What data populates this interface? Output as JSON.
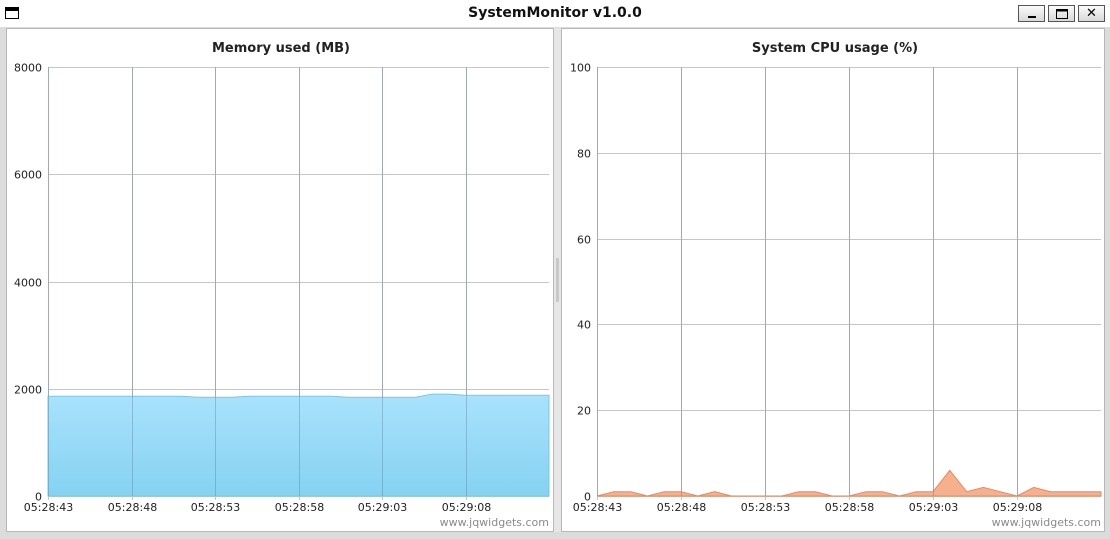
{
  "window": {
    "title": "SystemMonitor v1.0.0",
    "controls": [
      "minimize",
      "maximize",
      "close"
    ],
    "close_glyph": "✕"
  },
  "watermark": "www.jqwidgets.com",
  "colors": {
    "memory_fill_top": "#a9e2fc",
    "memory_fill_bottom": "#85d2f2",
    "memory_stroke": "#7cc6e6",
    "cpu_fill": "#f7b08d",
    "cpu_stroke": "#e68a5e"
  },
  "chart_data": [
    {
      "id": "memory",
      "type": "area",
      "title": "Memory used (MB)",
      "xlabel": "",
      "ylabel": "",
      "ylim": [
        0,
        8000
      ],
      "yticks": [
        0,
        2000,
        4000,
        6000,
        8000
      ],
      "x_tick_labels": [
        "05:28:43",
        "05:28:48",
        "05:28:53",
        "05:28:58",
        "05:29:03",
        "05:29:08"
      ],
      "x": [
        "05:28:43",
        "05:28:44",
        "05:28:45",
        "05:28:46",
        "05:28:47",
        "05:28:48",
        "05:28:49",
        "05:28:50",
        "05:28:51",
        "05:28:52",
        "05:28:53",
        "05:28:54",
        "05:28:55",
        "05:28:56",
        "05:28:57",
        "05:28:58",
        "05:28:59",
        "05:29:00",
        "05:29:01",
        "05:29:02",
        "05:29:03",
        "05:29:04",
        "05:29:05",
        "05:29:06",
        "05:29:07",
        "05:29:08",
        "05:29:09",
        "05:29:10",
        "05:29:11",
        "05:29:12",
        "05:29:13"
      ],
      "series": [
        {
          "values": [
            1860,
            1860,
            1860,
            1860,
            1860,
            1860,
            1860,
            1860,
            1860,
            1840,
            1840,
            1840,
            1860,
            1860,
            1860,
            1860,
            1860,
            1860,
            1840,
            1840,
            1840,
            1840,
            1840,
            1900,
            1900,
            1880,
            1880,
            1880,
            1880,
            1880,
            1880
          ]
        }
      ],
      "grid": true
    },
    {
      "id": "cpu",
      "type": "area",
      "title": "System CPU usage (%)",
      "xlabel": "",
      "ylabel": "",
      "ylim": [
        0,
        100
      ],
      "yticks": [
        0,
        20,
        40,
        60,
        80,
        100
      ],
      "x_tick_labels": [
        "05:28:43",
        "05:28:48",
        "05:28:53",
        "05:28:58",
        "05:29:03",
        "05:29:08"
      ],
      "x": [
        "05:28:43",
        "05:28:44",
        "05:28:45",
        "05:28:46",
        "05:28:47",
        "05:28:48",
        "05:28:49",
        "05:28:50",
        "05:28:51",
        "05:28:52",
        "05:28:53",
        "05:28:54",
        "05:28:55",
        "05:28:56",
        "05:28:57",
        "05:28:58",
        "05:28:59",
        "05:29:00",
        "05:29:01",
        "05:29:02",
        "05:29:03",
        "05:29:04",
        "05:29:05",
        "05:29:06",
        "05:29:07",
        "05:29:08",
        "05:29:09",
        "05:29:10",
        "05:29:11",
        "05:29:12",
        "05:29:13"
      ],
      "series": [
        {
          "values": [
            0,
            1,
            1,
            0,
            1,
            1,
            0,
            1,
            0,
            0,
            0,
            0,
            1,
            1,
            0,
            0,
            1,
            1,
            0,
            1,
            1,
            6,
            1,
            2,
            1,
            0,
            2,
            1,
            1,
            1,
            1
          ]
        }
      ],
      "grid": true
    }
  ]
}
